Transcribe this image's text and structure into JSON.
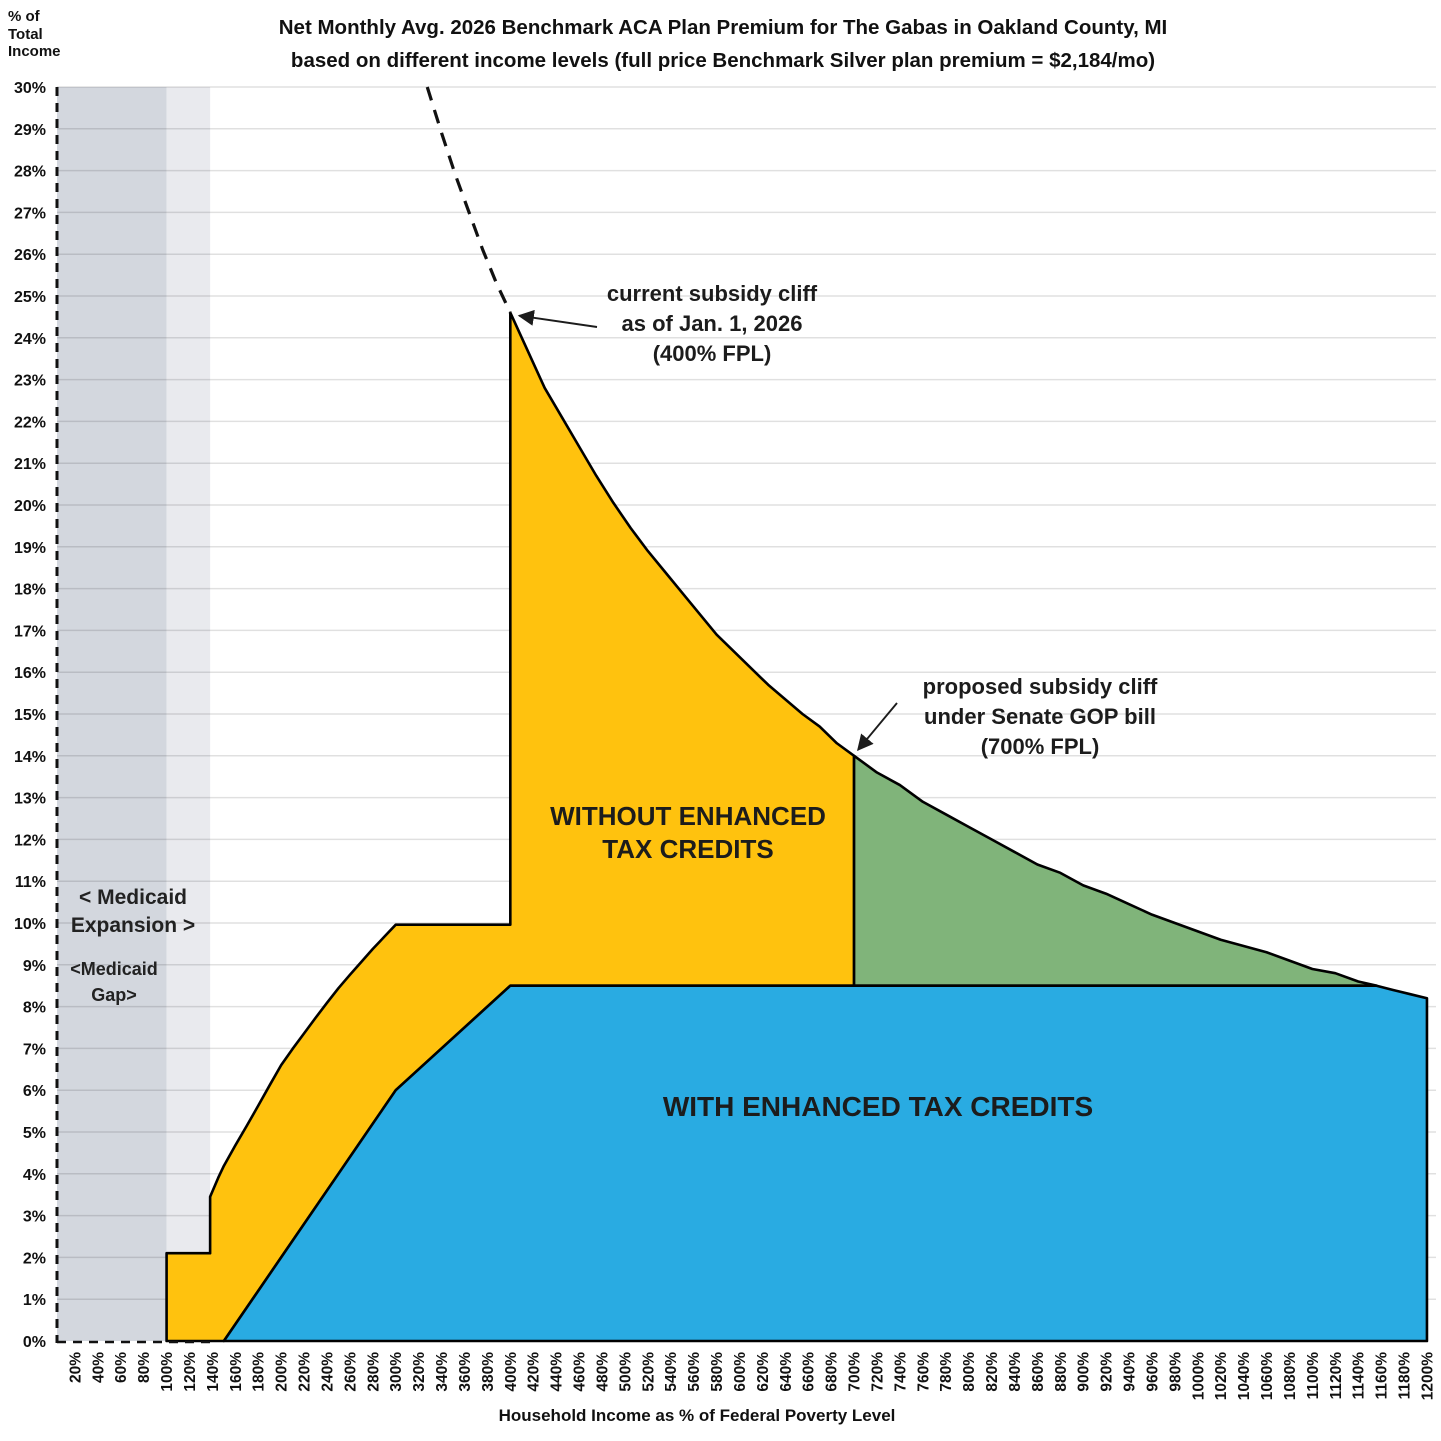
{
  "title": {
    "line1": "Net Monthly Avg. 2026 Benchmark ACA Plan Premium for The Gabas in Oakland County, MI",
    "line2": "based on different income levels (full price Benchmark Silver plan premium = $2,184/mo)"
  },
  "y_axis": {
    "title_lines": [
      "% of",
      "Total",
      "Income"
    ],
    "tick_labels": [
      "0%",
      "1%",
      "2%",
      "3%",
      "4%",
      "5%",
      "6%",
      "7%",
      "8%",
      "9%",
      "10%",
      "11%",
      "12%",
      "13%",
      "14%",
      "15%",
      "16%",
      "17%",
      "18%",
      "19%",
      "20%",
      "21%",
      "22%",
      "23%",
      "24%",
      "25%",
      "26%",
      "27%",
      "28%",
      "29%",
      "30%"
    ]
  },
  "x_axis": {
    "title": "Household Income as % of Federal Poverty Level",
    "tick_labels": [
      "20%",
      "40%",
      "60%",
      "80%",
      "100%",
      "120%",
      "140%",
      "160%",
      "180%",
      "200%",
      "220%",
      "240%",
      "260%",
      "280%",
      "300%",
      "320%",
      "340%",
      "360%",
      "380%",
      "400%",
      "420%",
      "440%",
      "460%",
      "480%",
      "500%",
      "520%",
      "540%",
      "560%",
      "580%",
      "600%",
      "620%",
      "640%",
      "660%",
      "680%",
      "700%",
      "720%",
      "740%",
      "760%",
      "780%",
      "800%",
      "820%",
      "840%",
      "860%",
      "880%",
      "900%",
      "920%",
      "940%",
      "960%",
      "980%",
      "1000%",
      "1020%",
      "1040%",
      "1060%",
      "1080%",
      "1100%",
      "1120%",
      "1140%",
      "1160%",
      "1180%",
      "1200%"
    ]
  },
  "medicaid_labels": {
    "expansion": [
      "< Medicaid",
      "Expansion >"
    ],
    "gap": [
      "<Medicaid",
      "Gap>"
    ]
  },
  "area_labels": {
    "without": [
      "WITHOUT ENHANCED",
      "TAX CREDITS"
    ],
    "with": [
      "WITH ENHANCED TAX CREDITS"
    ]
  },
  "annotations": [
    {
      "name": "current-subsidy-cliff",
      "lines": [
        "current subsidy cliff",
        "as of Jan. 1, 2026",
        "(400% FPL)"
      ],
      "target_fpl": 400,
      "target_pct": 24.6
    },
    {
      "name": "proposed-subsidy-cliff",
      "lines": [
        "proposed subsidy cliff",
        "under Senate GOP bill",
        "(700% FPL)"
      ],
      "target_fpl": 700,
      "target_pct": 14.0
    }
  ],
  "colors": {
    "without_fill": "#FFC20E",
    "with_fill": "#29ABE2",
    "proposed_fill": "#80B47A",
    "band_dark": "#D3D7DE",
    "band_light": "#E9EAEE",
    "outline": "#000000",
    "gridline_rgba": "rgba(0,0,0,0.12)"
  },
  "chart_data": {
    "type": "area",
    "title": "Net Monthly Avg. 2026 Benchmark ACA Plan Premium for The Gabas in Oakland County, MI based on different income levels (full price Benchmark Silver plan premium = $2,184/mo)",
    "xlabel": "Household Income as % of Federal Poverty Level",
    "ylabel": "% of Total Income",
    "xlim": [
      0,
      1200
    ],
    "ylim": [
      0,
      30
    ],
    "grid": "horizontal",
    "legend_position": "none",
    "full_price_benchmark_premium": "$2,184/mo",
    "bands": [
      {
        "name": "medicaid-expansion-band",
        "fpl_from": 0,
        "fpl_to": 100,
        "color_key": "band_dark"
      },
      {
        "name": "medicaid-expansion-band-upper",
        "fpl_from": 100,
        "fpl_to": 138,
        "color_key": "band_light"
      }
    ],
    "series": [
      {
        "name": "full_price_premium_dashed",
        "style": "dashed-line",
        "points": [
          [
            327.5,
            30.0
          ],
          [
            340,
            28.9
          ],
          [
            352,
            27.9
          ],
          [
            364,
            27.0
          ],
          [
            376,
            26.1
          ],
          [
            388,
            25.3
          ],
          [
            400,
            24.6
          ]
        ]
      },
      {
        "name": "without_enhanced_tax_credits",
        "style": "polygon",
        "color_key": "without_fill",
        "points": [
          [
            100,
            0
          ],
          [
            100,
            2.1
          ],
          [
            138,
            2.1
          ],
          [
            138,
            3.45
          ],
          [
            145,
            3.9
          ],
          [
            150,
            4.19
          ],
          [
            160,
            4.68
          ],
          [
            170,
            5.15
          ],
          [
            180,
            5.63
          ],
          [
            190,
            6.12
          ],
          [
            200,
            6.6
          ],
          [
            210,
            6.99
          ],
          [
            220,
            7.36
          ],
          [
            230,
            7.73
          ],
          [
            240,
            8.09
          ],
          [
            250,
            8.44
          ],
          [
            260,
            8.76
          ],
          [
            270,
            9.07
          ],
          [
            280,
            9.38
          ],
          [
            290,
            9.67
          ],
          [
            300,
            9.96
          ],
          [
            400,
            9.96
          ],
          [
            400,
            24.6
          ],
          [
            415,
            23.7
          ],
          [
            430,
            22.8
          ],
          [
            445,
            22.1
          ],
          [
            460,
            21.4
          ],
          [
            475,
            20.7
          ],
          [
            490,
            20.05
          ],
          [
            505,
            19.45
          ],
          [
            520,
            18.9
          ],
          [
            535,
            18.4
          ],
          [
            550,
            17.9
          ],
          [
            565,
            17.4
          ],
          [
            580,
            16.9
          ],
          [
            595,
            16.5
          ],
          [
            610,
            16.1
          ],
          [
            625,
            15.7
          ],
          [
            640,
            15.35
          ],
          [
            655,
            15.0
          ],
          [
            670,
            14.7
          ],
          [
            685,
            14.3
          ],
          [
            700,
            14.0
          ],
          [
            700,
            8.5
          ],
          [
            400,
            8.5
          ],
          [
            300,
            6
          ],
          [
            250,
            4
          ],
          [
            200,
            2
          ],
          [
            150,
            0
          ]
        ]
      },
      {
        "name": "proposed_cliff_extension_region",
        "style": "polygon",
        "color_key": "proposed_fill",
        "points": [
          [
            700,
            14.0
          ],
          [
            720,
            13.6
          ],
          [
            740,
            13.3
          ],
          [
            760,
            12.9
          ],
          [
            780,
            12.6
          ],
          [
            800,
            12.3
          ],
          [
            820,
            12.0
          ],
          [
            840,
            11.7
          ],
          [
            860,
            11.4
          ],
          [
            880,
            11.2
          ],
          [
            900,
            10.9
          ],
          [
            920,
            10.7
          ],
          [
            940,
            10.45
          ],
          [
            960,
            10.2
          ],
          [
            980,
            10.0
          ],
          [
            1000,
            9.8
          ],
          [
            1020,
            9.6
          ],
          [
            1040,
            9.45
          ],
          [
            1060,
            9.3
          ],
          [
            1080,
            9.1
          ],
          [
            1100,
            8.9
          ],
          [
            1120,
            8.8
          ],
          [
            1140,
            8.6
          ],
          [
            1156,
            8.5
          ],
          [
            700,
            8.5
          ]
        ]
      },
      {
        "name": "with_enhanced_tax_credits",
        "style": "polygon",
        "color_key": "with_fill",
        "points": [
          [
            150,
            0
          ],
          [
            200,
            2
          ],
          [
            250,
            4
          ],
          [
            300,
            6
          ],
          [
            400,
            8.5
          ],
          [
            1156,
            8.5
          ],
          [
            1170,
            8.4
          ],
          [
            1185,
            8.3
          ],
          [
            1200,
            8.2
          ],
          [
            1200,
            0
          ]
        ]
      }
    ],
    "key_points": {
      "current_cliff": {
        "fpl": 400,
        "pct_of_income": 24.6
      },
      "proposed_cliff": {
        "fpl": 700,
        "pct_of_income": 14.0
      },
      "enhanced_credit_cap_pct": 8.5,
      "medicaid_expansion_upper_fpl": 138,
      "medicaid_gap_upper_fpl": 100
    }
  }
}
